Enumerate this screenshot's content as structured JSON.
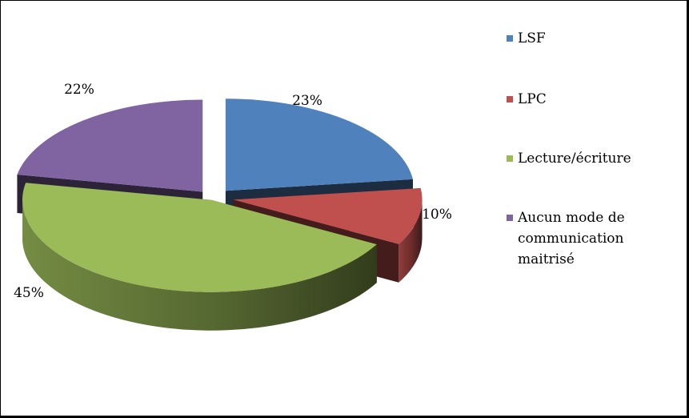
{
  "chart_data": {
    "type": "pie",
    "title": "",
    "slices": [
      {
        "label": "LSF",
        "value": 23,
        "display": "23%",
        "color": "#4F81BD"
      },
      {
        "label": "LPC",
        "value": 10,
        "display": "10%",
        "color": "#C0504D"
      },
      {
        "label": "Lecture/écriture",
        "value": 45,
        "display": "45%",
        "color": "#9BBB59"
      },
      {
        "label": "Aucun mode de communication maitrisé",
        "value": 22,
        "display": "22%",
        "color": "#8064A2"
      }
    ],
    "legend_position": "right",
    "exploded": true,
    "three_d": true
  }
}
